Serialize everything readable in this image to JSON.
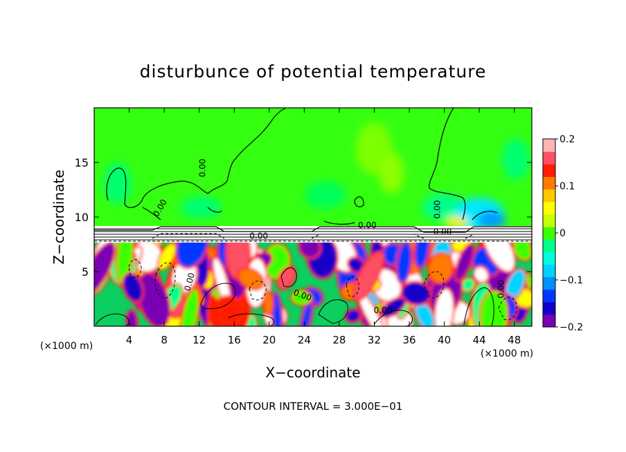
{
  "chart_data": {
    "type": "heatmap",
    "title": "disturbunce of potential temperature",
    "xlabel": "X−coordinate",
    "ylabel": "Z−coordinate",
    "x_unit_left": "(×1000 m)",
    "x_unit_right": "(×1000 m)",
    "xlim": [
      0,
      50
    ],
    "ylim": [
      0,
      20
    ],
    "xticks": [
      4,
      8,
      12,
      16,
      20,
      24,
      28,
      32,
      36,
      40,
      44,
      48
    ],
    "yticks": [
      5,
      10,
      15
    ],
    "colorbar": {
      "range": [
        -0.2,
        0.2
      ],
      "ticks": [
        -0.2,
        -0.1,
        0,
        0.1,
        0.2
      ],
      "tick_labels": [
        "−0.2",
        "−0.1",
        "0",
        "0.1",
        "0.2"
      ],
      "colors": [
        "#7a00b4",
        "#1400c8",
        "#0038ff",
        "#0090ff",
        "#00d2ff",
        "#00ffd8",
        "#00ff8a",
        "#3cff00",
        "#c8ff00",
        "#ffff00",
        "#ffc800",
        "#ff7a00",
        "#ff1e00",
        "#ff5064",
        "#ffb4b4"
      ]
    },
    "contour_labels": [
      {
        "text": "0.00",
        "x": 12.7,
        "y": 14.5,
        "rotate": -90
      },
      {
        "text": "0.00",
        "x": 7.8,
        "y": 10.7,
        "rotate": -60
      },
      {
        "text": "0.00",
        "x": 39.5,
        "y": 10.7,
        "rotate": -90
      },
      {
        "text": "0.00",
        "x": 18.8,
        "y": 8.0,
        "rotate": 0
      },
      {
        "text": "0.00",
        "x": 31.2,
        "y": 9.0,
        "rotate": 0
      },
      {
        "text": "0.00",
        "x": 39.8,
        "y": 8.4,
        "rotate": 0
      },
      {
        "text": "0.00",
        "x": 11.2,
        "y": 4.0,
        "rotate": -75
      },
      {
        "text": "0.00",
        "x": 23.7,
        "y": 2.6,
        "rotate": 20
      },
      {
        "text": "0.00",
        "x": 33.0,
        "y": 1.2,
        "rotate": 0
      },
      {
        "text": "0.00",
        "x": 46.8,
        "y": 3.4,
        "rotate": -90
      }
    ],
    "annotation": "CONTOUR INTERVAL = 3.000E−01"
  }
}
